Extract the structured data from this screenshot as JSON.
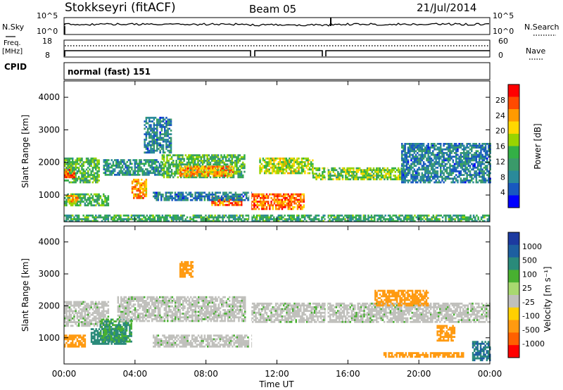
{
  "header": {
    "station": "Stokkseyri (fitACF)",
    "beam": "Beam 05",
    "date": "21/Jul/2014"
  },
  "noise_panel": {
    "left_label": "N.Sky",
    "left_ticks": [
      "10^5",
      "10^0"
    ],
    "right_ticks": [
      "10^5",
      "10^0"
    ],
    "right_label": "N.Search"
  },
  "freq_panel": {
    "left_label_1": "Freq.",
    "left_label_2": "[MHz]",
    "left_ticks": [
      "18",
      "8"
    ],
    "right_ticks": [
      "60",
      "0"
    ],
    "right_label": "Nave"
  },
  "cpid_panel": {
    "label": "CPID",
    "value": "normal (fast) 151"
  },
  "time_axis": {
    "ticks": [
      "00:00",
      "04:00",
      "08:00",
      "12:00",
      "16:00",
      "20:00",
      "00:00"
    ],
    "label": "Time UT"
  },
  "power_panel": {
    "y_label": "Slant Range [km]",
    "y_ticks": [
      "4000",
      "3000",
      "2000",
      "1000"
    ],
    "colorbar_label": "Power [dB]",
    "colorbar_ticks": [
      "28",
      "24",
      "20",
      "16",
      "12",
      "8",
      "4"
    ],
    "colorbar_colors": [
      "#ff0000",
      "#ff4a00",
      "#ff9a00",
      "#ffd800",
      "#99d400",
      "#33b046",
      "#3a9a6a",
      "#2a8a9a",
      "#1858c0",
      "#0000ff"
    ]
  },
  "velocity_panel": {
    "y_label": "Slant Range [km]",
    "y_ticks": [
      "4000",
      "3000",
      "2000",
      "1000"
    ],
    "colorbar_label": "Velocity [m s⁻¹]",
    "colorbar_ticks": [
      "1000",
      "500",
      "100",
      "25",
      "-25",
      "-100",
      "-500",
      "-1000"
    ],
    "colorbar_colors": [
      "#1c3aa0",
      "#1d5fa0",
      "#2a8a7a",
      "#48b030",
      "#a8d870",
      "#c0c0bc",
      "#ffd000",
      "#ff9a10",
      "#ff6000",
      "#ff0000"
    ]
  },
  "chart_data": [
    {
      "type": "heatmap",
      "title": "Power",
      "xlabel": "Time UT",
      "ylabel": "Slant Range [km]",
      "xlim": [
        0,
        24
      ],
      "ylim": [
        180,
        4500
      ],
      "colorbar": {
        "label": "Power [dB]",
        "range": [
          0,
          32
        ]
      },
      "regions": [
        {
          "t": [
            0,
            2.0
          ],
          "range": [
            1400,
            2150
          ],
          "value": 14
        },
        {
          "t": [
            0,
            0.6
          ],
          "range": [
            1550,
            1800
          ],
          "value": 26
        },
        {
          "t": [
            0,
            2.5
          ],
          "range": [
            700,
            1050
          ],
          "value": 14
        },
        {
          "t": [
            0.2,
            0.8
          ],
          "range": [
            800,
            1000
          ],
          "value": 24
        },
        {
          "t": [
            2.2,
            5.5
          ],
          "range": [
            1600,
            2100
          ],
          "value": 10
        },
        {
          "t": [
            3.8,
            4.6
          ],
          "range": [
            900,
            1500
          ],
          "value": 24
        },
        {
          "t": [
            4.5,
            6.0
          ],
          "range": [
            2300,
            3400
          ],
          "value": 8
        },
        {
          "t": [
            5.5,
            10.2
          ],
          "range": [
            1550,
            2250
          ],
          "value": 14
        },
        {
          "t": [
            6.5,
            9.5
          ],
          "range": [
            1600,
            1900
          ],
          "value": 24
        },
        {
          "t": [
            8.3,
            10.0
          ],
          "range": [
            700,
            950
          ],
          "value": 26
        },
        {
          "t": [
            5.0,
            10.5
          ],
          "range": [
            850,
            1100
          ],
          "value": 8
        },
        {
          "t": [
            10.5,
            13.5
          ],
          "range": [
            600,
            1050
          ],
          "value": 26
        },
        {
          "t": [
            11.0,
            14.0
          ],
          "range": [
            1700,
            2150
          ],
          "value": 18
        },
        {
          "t": [
            14.0,
            19.0
          ],
          "range": [
            1500,
            1850
          ],
          "value": 16
        },
        {
          "t": [
            19.0,
            24.0
          ],
          "range": [
            1400,
            2600
          ],
          "value": 8
        },
        {
          "t": [
            0,
            24.0
          ],
          "range": [
            180,
            400
          ],
          "value": 12
        }
      ]
    },
    {
      "type": "heatmap",
      "title": "Velocity",
      "xlabel": "Time UT",
      "ylabel": "Slant Range [km]",
      "xlim": [
        0,
        24
      ],
      "ylim": [
        180,
        4500
      ],
      "colorbar": {
        "label": "Velocity [m s⁻¹]",
        "range": [
          -1000,
          1000
        ]
      },
      "regions": [
        {
          "t": [
            0,
            2.5
          ],
          "range": [
            1400,
            2150
          ],
          "value": 0
        },
        {
          "t": [
            0,
            1.2
          ],
          "range": [
            700,
            1100
          ],
          "value": -300
        },
        {
          "t": [
            1.5,
            3.5
          ],
          "range": [
            800,
            1300
          ],
          "value": 120
        },
        {
          "t": [
            2.0,
            3.8
          ],
          "range": [
            900,
            1600
          ],
          "value": 60
        },
        {
          "t": [
            3.0,
            10.2
          ],
          "range": [
            1500,
            2300
          ],
          "value": 0
        },
        {
          "t": [
            6.5,
            7.2
          ],
          "range": [
            2900,
            3400
          ],
          "value": -400
        },
        {
          "t": [
            5.0,
            10.5
          ],
          "range": [
            700,
            1100
          ],
          "value": 0
        },
        {
          "t": [
            10.5,
            24.0
          ],
          "range": [
            1500,
            2100
          ],
          "value": 0
        },
        {
          "t": [
            17.5,
            20.5
          ],
          "range": [
            2000,
            2500
          ],
          "value": -300
        },
        {
          "t": [
            18.0,
            22.5
          ],
          "range": [
            380,
            550
          ],
          "value": -400
        },
        {
          "t": [
            21.0,
            22.0
          ],
          "range": [
            900,
            1400
          ],
          "value": -600
        },
        {
          "t": [
            23.0,
            24.0
          ],
          "range": [
            300,
            900
          ],
          "value": 300
        }
      ]
    }
  ]
}
